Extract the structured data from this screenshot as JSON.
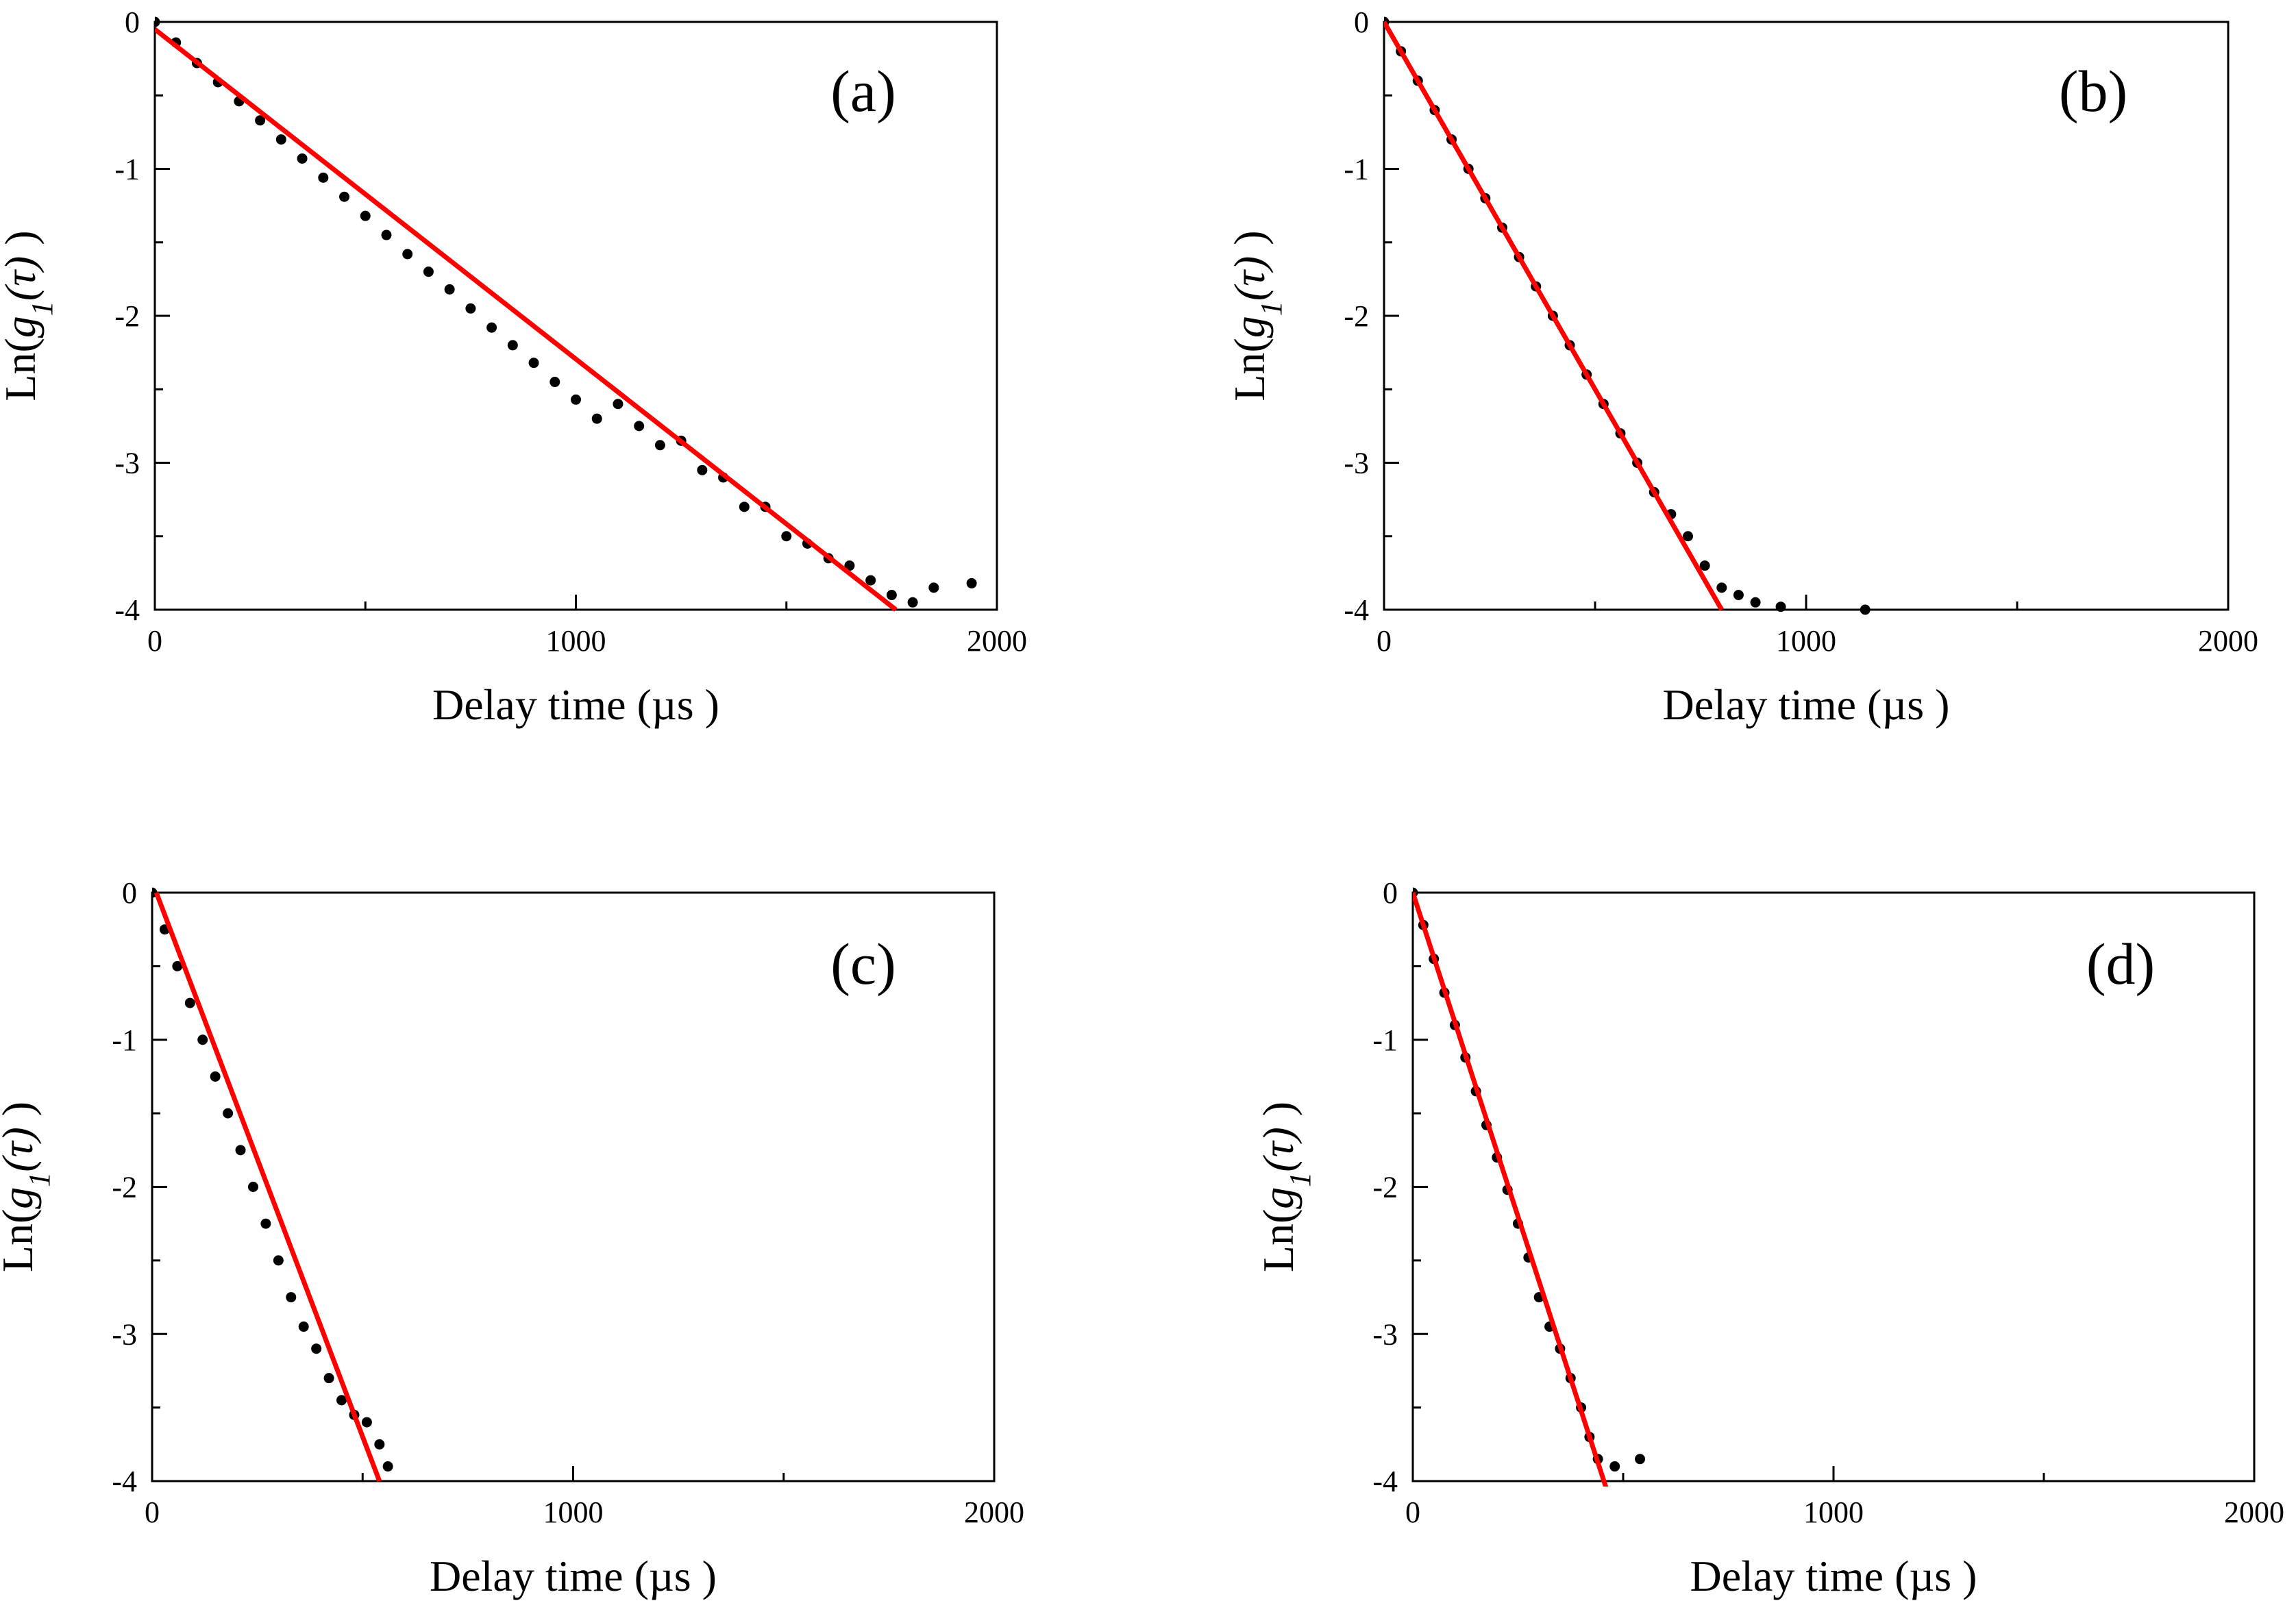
{
  "figure": {
    "colors": {
      "fit": "#ff0000",
      "points": "#000000",
      "axes": "#000000",
      "background": "#ffffff"
    }
  },
  "chart_data": [
    {
      "type": "scatter",
      "panel": "a",
      "label": "(a)",
      "xlabel": "Delay time (µs )",
      "ylabel_prefix": "Ln(",
      "ylabel_g": "g",
      "ylabel_sub": "1",
      "ylabel_tau": "(τ)",
      "ylabel_suffix": " )",
      "xlim": [
        0,
        2000
      ],
      "ylim": [
        -4,
        0
      ],
      "xticks": [
        0,
        1000,
        2000
      ],
      "xtick_labels": [
        "0",
        "1000",
        "2000"
      ],
      "yticks": [
        0,
        -1,
        -2,
        -3,
        -4
      ],
      "ytick_labels": [
        "0",
        "-1",
        "-2",
        "-3",
        "-4"
      ],
      "series": [
        {
          "name": "data",
          "kind": "points",
          "x": [
            0,
            50,
            100,
            150,
            200,
            250,
            300,
            350,
            400,
            450,
            500,
            550,
            600,
            650,
            700,
            750,
            800,
            850,
            900,
            950,
            1000,
            1050,
            1100,
            1150,
            1200,
            1250,
            1300,
            1350,
            1400,
            1450,
            1500,
            1550,
            1600,
            1650,
            1700,
            1750,
            1800,
            1850,
            1940
          ],
          "y": [
            0,
            -0.14,
            -0.28,
            -0.41,
            -0.54,
            -0.67,
            -0.8,
            -0.93,
            -1.06,
            -1.19,
            -1.32,
            -1.45,
            -1.58,
            -1.7,
            -1.82,
            -1.95,
            -2.08,
            -2.2,
            -2.32,
            -2.45,
            -2.57,
            -2.7,
            -2.6,
            -2.75,
            -2.88,
            -2.85,
            -3.05,
            -3.1,
            -3.3,
            -3.3,
            -3.5,
            -3.55,
            -3.65,
            -3.7,
            -3.8,
            -3.9,
            -3.95,
            -3.85,
            -3.82
          ]
        },
        {
          "name": "linear fit",
          "kind": "line",
          "x": [
            0,
            1760
          ],
          "y": [
            -0.05,
            -4
          ]
        }
      ]
    },
    {
      "type": "scatter",
      "panel": "b",
      "label": "(b)",
      "xlabel": "Delay time (µs )",
      "ylabel_prefix": "Ln(",
      "ylabel_g": "g",
      "ylabel_sub": "1",
      "ylabel_tau": "(τ)",
      "ylabel_suffix": " )",
      "xlim": [
        0,
        2000
      ],
      "ylim": [
        -4,
        0
      ],
      "xticks": [
        0,
        1000,
        2000
      ],
      "xtick_labels": [
        "0",
        "1000",
        "2000"
      ],
      "yticks": [
        0,
        -1,
        -2,
        -3,
        -4
      ],
      "ytick_labels": [
        "0",
        "-1",
        "-2",
        "-3",
        "-4"
      ],
      "series": [
        {
          "name": "data",
          "kind": "points",
          "x": [
            0,
            40,
            80,
            120,
            160,
            200,
            240,
            280,
            320,
            360,
            400,
            440,
            480,
            520,
            560,
            600,
            640,
            680,
            720,
            760,
            800,
            840,
            880,
            940,
            1140
          ],
          "y": [
            0,
            -0.2,
            -0.4,
            -0.6,
            -0.8,
            -1.0,
            -1.2,
            -1.4,
            -1.6,
            -1.8,
            -2.0,
            -2.2,
            -2.4,
            -2.6,
            -2.8,
            -3.0,
            -3.2,
            -3.35,
            -3.5,
            -3.7,
            -3.85,
            -3.9,
            -3.95,
            -3.98,
            -4.0
          ]
        },
        {
          "name": "linear fit",
          "kind": "line",
          "x": [
            0,
            800
          ],
          "y": [
            0,
            -4
          ]
        }
      ]
    },
    {
      "type": "scatter",
      "panel": "c",
      "label": "(c)",
      "xlabel": "Delay time (µs )",
      "ylabel_prefix": "Ln(",
      "ylabel_g": "g",
      "ylabel_sub": "1",
      "ylabel_tau": "(τ)",
      "ylabel_suffix": " )",
      "xlim": [
        0,
        2000
      ],
      "ylim": [
        -4,
        0
      ],
      "xticks": [
        0,
        1000,
        2000
      ],
      "xtick_labels": [
        "0",
        "1000",
        "2000"
      ],
      "yticks": [
        0,
        -1,
        -2,
        -3,
        -4
      ],
      "ytick_labels": [
        "0",
        "-1",
        "-2",
        "-3",
        "-4"
      ],
      "series": [
        {
          "name": "data",
          "kind": "points",
          "x": [
            0,
            30,
            60,
            90,
            120,
            150,
            180,
            210,
            240,
            270,
            300,
            330,
            360,
            390,
            420,
            450,
            480,
            510,
            540,
            560
          ],
          "y": [
            0,
            -0.25,
            -0.5,
            -0.75,
            -1.0,
            -1.25,
            -1.5,
            -1.75,
            -2.0,
            -2.25,
            -2.5,
            -2.75,
            -2.95,
            -3.1,
            -3.3,
            -3.45,
            -3.55,
            -3.6,
            -3.75,
            -3.9
          ]
        },
        {
          "name": "linear fit",
          "kind": "line",
          "x": [
            10,
            540
          ],
          "y": [
            0,
            -4
          ]
        }
      ]
    },
    {
      "type": "scatter",
      "panel": "d",
      "label": "(d)",
      "xlabel": "Delay time (µs )",
      "ylabel_prefix": "Ln(",
      "ylabel_g": "g",
      "ylabel_sub": "1",
      "ylabel_tau": "(τ)",
      "ylabel_suffix": " )",
      "xlim": [
        0,
        2000
      ],
      "ylim": [
        -4,
        0
      ],
      "xticks": [
        0,
        1000,
        2000
      ],
      "xtick_labels": [
        "0",
        "1000",
        "2000"
      ],
      "yticks": [
        0,
        -1,
        -2,
        -3,
        -4
      ],
      "ytick_labels": [
        "0",
        "-1",
        "-2",
        "-3",
        "-4"
      ],
      "series": [
        {
          "name": "data",
          "kind": "points",
          "x": [
            0,
            25,
            50,
            75,
            100,
            125,
            150,
            175,
            200,
            225,
            250,
            275,
            300,
            325,
            350,
            375,
            400,
            420,
            440,
            480,
            540
          ],
          "y": [
            0,
            -0.22,
            -0.45,
            -0.68,
            -0.9,
            -1.12,
            -1.35,
            -1.58,
            -1.8,
            -2.02,
            -2.25,
            -2.48,
            -2.75,
            -2.95,
            -3.1,
            -3.3,
            -3.5,
            -3.7,
            -3.85,
            -3.9,
            -3.85
          ]
        },
        {
          "name": "linear fit",
          "kind": "line",
          "x": [
            0,
            460
          ],
          "y": [
            0,
            -4.05
          ]
        }
      ]
    }
  ]
}
